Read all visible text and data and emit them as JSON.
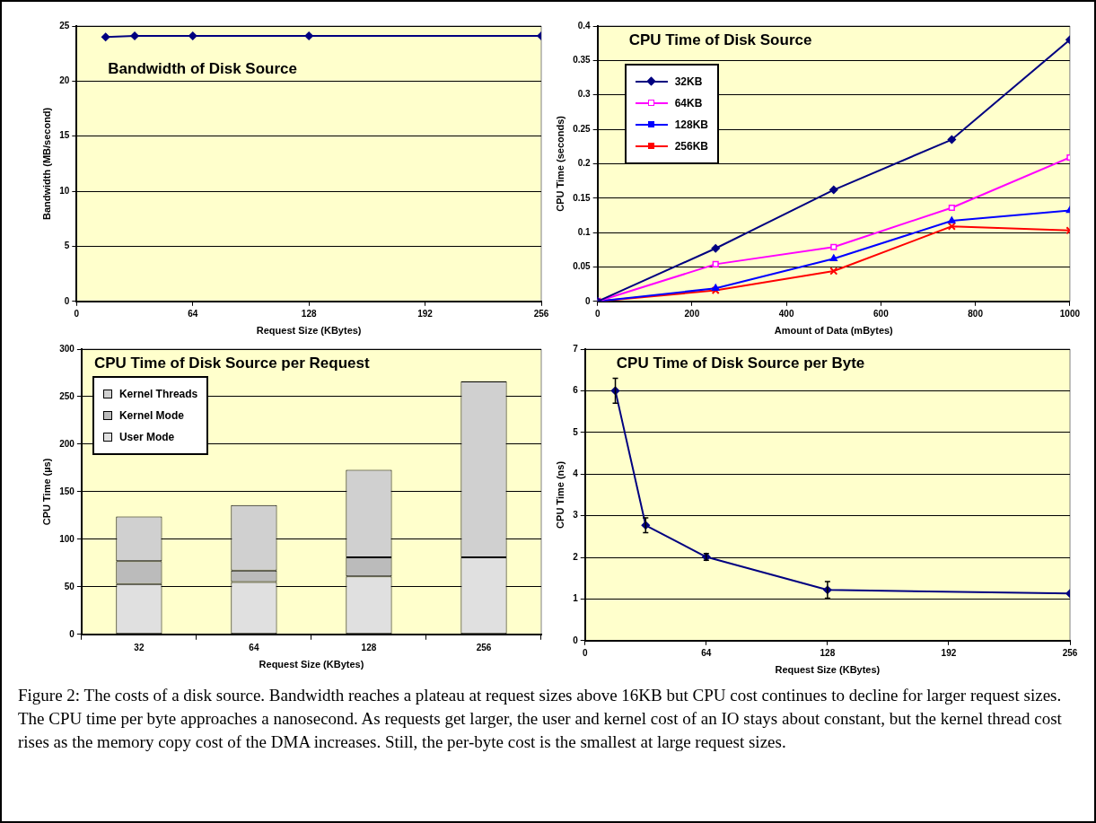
{
  "chart_data": [
    {
      "type": "line",
      "title": "Bandwidth of Disk Source",
      "xlabel": "Request Size (KBytes)",
      "ylabel": "Bandwidth (MB/second)",
      "x": [
        16,
        32,
        64,
        128,
        256
      ],
      "values": [
        24,
        24.1,
        24.1,
        24.1,
        24.1
      ],
      "color": "#000080",
      "marker": "diamond",
      "xlim": [
        0,
        256
      ],
      "xticks": [
        0,
        64,
        128,
        192,
        256
      ],
      "ylim": [
        0,
        25
      ],
      "yticks": [
        0,
        5,
        10,
        15,
        20,
        25
      ],
      "grid": "y"
    },
    {
      "type": "line",
      "title": "CPU Time of Disk Source",
      "xlabel": "Amount of Data (mBytes)",
      "ylabel": "CPU Time (seconds)",
      "x": [
        0,
        250,
        500,
        750,
        1000
      ],
      "series": [
        {
          "name": "32KB",
          "color": "#000080",
          "marker": "diamond",
          "values": [
            0,
            0.077,
            0.162,
            0.235,
            0.38
          ]
        },
        {
          "name": "64KB",
          "color": "#ff00ff",
          "marker": "square",
          "values": [
            0,
            0.054,
            0.079,
            0.136,
            0.209
          ]
        },
        {
          "name": "128KB",
          "color": "#0000ff",
          "marker": "triangle",
          "values": [
            0,
            0.019,
            0.062,
            0.117,
            0.132
          ]
        },
        {
          "name": "256KB",
          "color": "#ff0000",
          "marker": "cross",
          "values": [
            0,
            0.016,
            0.044,
            0.109,
            0.103
          ]
        }
      ],
      "xlim": [
        0,
        1000
      ],
      "xticks": [
        0,
        200,
        400,
        600,
        800,
        1000
      ],
      "ylim": [
        0,
        0.4
      ],
      "yticks": [
        0,
        0.05,
        0.1,
        0.15,
        0.2,
        0.25,
        0.3,
        0.35,
        0.4
      ],
      "grid": "y",
      "legend": "top left"
    },
    {
      "type": "bar",
      "stacked": true,
      "title": "CPU Time of Disk Source per Request",
      "xlabel": "Request Size (KBytes)",
      "ylabel": "CPU Time (µs)",
      "categories": [
        "32",
        "64",
        "128",
        "256"
      ],
      "series": [
        {
          "name": "User Mode",
          "color": "#e0e0e0",
          "values": [
            53,
            55,
            61,
            81
          ]
        },
        {
          "name": "Kernel Mode",
          "color": "#bbbbbb",
          "values": [
            24,
            12,
            20,
            null
          ]
        },
        {
          "name": "Kernel Threads",
          "color": "#d0d0d0",
          "values": [
            47,
            69,
            92,
            185
          ]
        }
      ],
      "ylim": [
        0,
        300
      ],
      "yticks": [
        0,
        50,
        100,
        150,
        200,
        250,
        300
      ],
      "grid": "y",
      "legend": "top left"
    },
    {
      "type": "line",
      "title": "CPU Time of Disk Source per Byte",
      "xlabel": "Request Size (KBytes)",
      "ylabel": "CPU Time (ns)",
      "x": [
        16,
        32,
        64,
        128,
        256
      ],
      "values": [
        6,
        2.77,
        2.01,
        1.22,
        1.13
      ],
      "errors": [
        0.3,
        0.18,
        0.08,
        0.2,
        null
      ],
      "color": "#000080",
      "marker": "diamond",
      "xlim": [
        0,
        256
      ],
      "xticks": [
        0,
        64,
        128,
        192,
        256
      ],
      "ylim": [
        0,
        7
      ],
      "yticks": [
        0,
        1,
        2,
        3,
        4,
        5,
        6,
        7
      ],
      "grid": "y"
    },
    {
      "type": "other",
      "annotations": [
        "Figure 2: The costs of a disk source.  Bandwidth reaches a plateau at request sizes above 16KB but CPU cost continues to decline for larger request sizes.  The CPU time per byte approaches a nanosecond.  As requests get larger, the user and kernel cost of an IO stays about constant, but the kernel thread cost rises as the memory copy cost of the DMA increases.  Still, the per-byte cost is the smallest at large request sizes."
      ]
    }
  ]
}
